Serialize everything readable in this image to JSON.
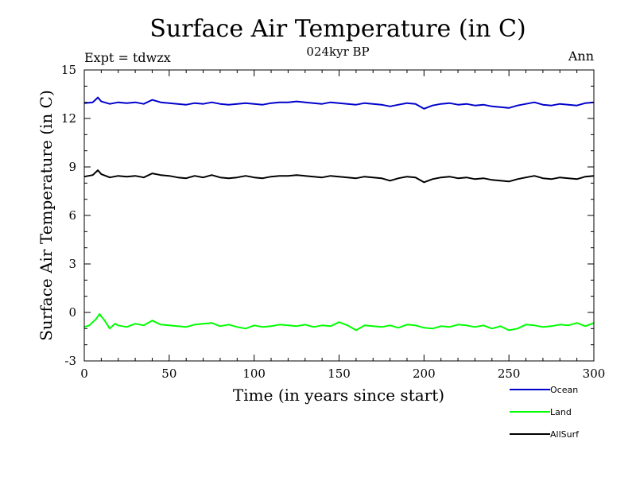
{
  "chart_data": {
    "type": "line",
    "title": "Surface Air Temperature (in C)",
    "subtitle": "024kyr BP",
    "left_annotation": "Expt = tdwzx",
    "right_annotation": "Ann",
    "xlabel": "Time (in years since start)",
    "ylabel": "Surface Air Temperature (in C)",
    "xlim": [
      0,
      300
    ],
    "ylim": [
      -3,
      15
    ],
    "xticks": [
      0,
      50,
      100,
      150,
      200,
      250,
      300
    ],
    "yticks": [
      -3,
      0,
      3,
      6,
      9,
      12,
      15
    ],
    "grid": false,
    "legend_placement": "bottom-right, below plot",
    "series": [
      {
        "name": "Ocean",
        "color": "#0000cc",
        "x": [
          0,
          5,
          8,
          10,
          15,
          20,
          25,
          30,
          35,
          40,
          45,
          50,
          55,
          60,
          65,
          70,
          75,
          80,
          85,
          90,
          95,
          100,
          105,
          110,
          115,
          120,
          125,
          130,
          135,
          140,
          145,
          150,
          155,
          160,
          165,
          170,
          175,
          180,
          185,
          190,
          195,
          200,
          205,
          210,
          215,
          220,
          225,
          230,
          235,
          240,
          245,
          250,
          255,
          260,
          265,
          270,
          275,
          280,
          285,
          290,
          295,
          300
        ],
        "values": [
          12.95,
          13.0,
          13.3,
          13.05,
          12.9,
          13.0,
          12.95,
          13.0,
          12.9,
          13.15,
          13.0,
          12.95,
          12.9,
          12.85,
          12.95,
          12.9,
          13.0,
          12.9,
          12.85,
          12.9,
          12.95,
          12.9,
          12.85,
          12.95,
          13.0,
          13.0,
          13.05,
          13.0,
          12.95,
          12.9,
          13.0,
          12.95,
          12.9,
          12.85,
          12.95,
          12.9,
          12.85,
          12.75,
          12.85,
          12.95,
          12.9,
          12.6,
          12.8,
          12.9,
          12.95,
          12.85,
          12.9,
          12.8,
          12.85,
          12.75,
          12.7,
          12.65,
          12.8,
          12.9,
          13.0,
          12.85,
          12.8,
          12.9,
          12.85,
          12.8,
          12.95,
          13.0
        ]
      },
      {
        "name": "Land",
        "color": "#00ff00",
        "x": [
          0,
          3,
          5,
          7,
          9,
          12,
          15,
          18,
          20,
          25,
          30,
          35,
          40,
          45,
          50,
          55,
          60,
          65,
          70,
          75,
          80,
          85,
          90,
          95,
          100,
          105,
          110,
          115,
          120,
          125,
          130,
          135,
          140,
          145,
          150,
          155,
          160,
          165,
          170,
          175,
          180,
          185,
          190,
          195,
          200,
          205,
          210,
          215,
          220,
          225,
          230,
          235,
          240,
          245,
          250,
          255,
          260,
          265,
          270,
          275,
          280,
          285,
          290,
          295,
          300
        ],
        "values": [
          -0.9,
          -0.8,
          -0.6,
          -0.4,
          -0.1,
          -0.5,
          -1.0,
          -0.7,
          -0.8,
          -0.9,
          -0.7,
          -0.8,
          -0.5,
          -0.75,
          -0.8,
          -0.85,
          -0.9,
          -0.75,
          -0.7,
          -0.65,
          -0.85,
          -0.75,
          -0.9,
          -1.0,
          -0.8,
          -0.9,
          -0.85,
          -0.75,
          -0.8,
          -0.85,
          -0.75,
          -0.9,
          -0.8,
          -0.85,
          -0.6,
          -0.8,
          -1.1,
          -0.8,
          -0.85,
          -0.9,
          -0.8,
          -0.95,
          -0.75,
          -0.8,
          -0.95,
          -1.0,
          -0.85,
          -0.9,
          -0.75,
          -0.8,
          -0.9,
          -0.8,
          -1.0,
          -0.85,
          -1.1,
          -1.0,
          -0.75,
          -0.8,
          -0.9,
          -0.85,
          -0.75,
          -0.8,
          -0.65,
          -0.85,
          -0.65
        ]
      },
      {
        "name": "AllSurf",
        "color": "#000000",
        "x": [
          0,
          5,
          8,
          10,
          15,
          20,
          25,
          30,
          35,
          40,
          45,
          50,
          55,
          60,
          65,
          70,
          75,
          80,
          85,
          90,
          95,
          100,
          105,
          110,
          115,
          120,
          125,
          130,
          135,
          140,
          145,
          150,
          155,
          160,
          165,
          170,
          175,
          180,
          185,
          190,
          195,
          200,
          205,
          210,
          215,
          220,
          225,
          230,
          235,
          240,
          245,
          250,
          255,
          260,
          265,
          270,
          275,
          280,
          285,
          290,
          295,
          300
        ],
        "values": [
          8.4,
          8.5,
          8.8,
          8.55,
          8.35,
          8.45,
          8.4,
          8.45,
          8.35,
          8.6,
          8.5,
          8.45,
          8.35,
          8.3,
          8.45,
          8.35,
          8.5,
          8.35,
          8.3,
          8.35,
          8.45,
          8.35,
          8.3,
          8.4,
          8.45,
          8.45,
          8.5,
          8.45,
          8.4,
          8.35,
          8.45,
          8.4,
          8.35,
          8.3,
          8.4,
          8.35,
          8.3,
          8.15,
          8.3,
          8.4,
          8.35,
          8.05,
          8.25,
          8.35,
          8.4,
          8.3,
          8.35,
          8.25,
          8.3,
          8.2,
          8.15,
          8.1,
          8.25,
          8.35,
          8.45,
          8.3,
          8.25,
          8.35,
          8.3,
          8.25,
          8.4,
          8.45
        ]
      }
    ]
  }
}
